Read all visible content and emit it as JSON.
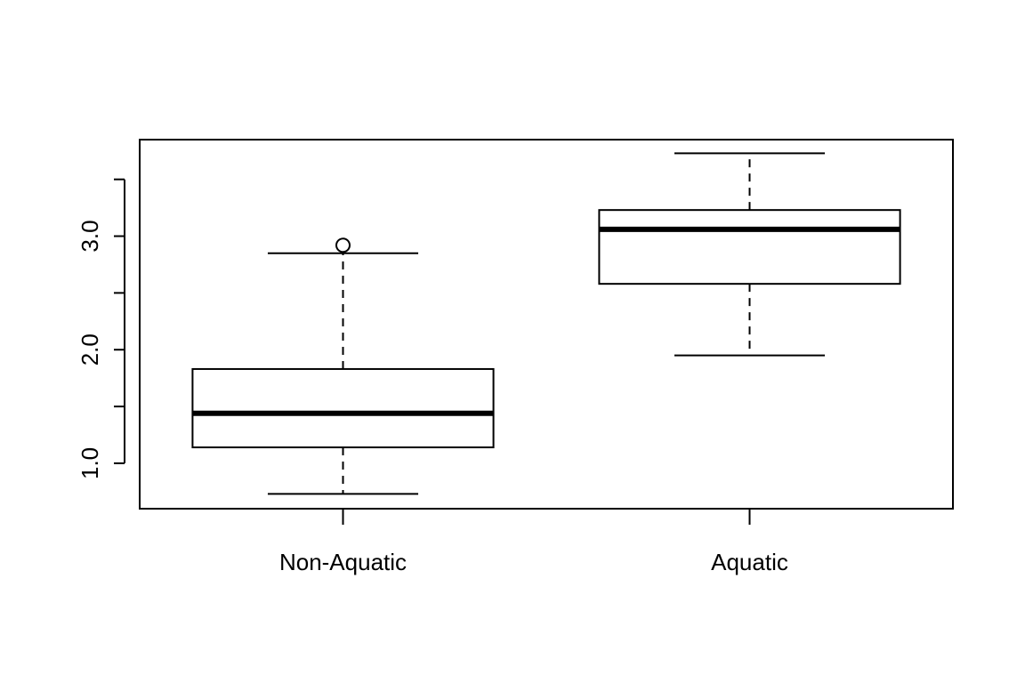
{
  "chart_data": {
    "type": "boxplot",
    "title": "",
    "xlabel": "",
    "ylabel": "",
    "ylim": [
      0.6,
      3.85
    ],
    "y_ticks": [
      1.0,
      1.5,
      2.0,
      2.5,
      3.0,
      3.5
    ],
    "y_tick_labels": [
      "1.0",
      "",
      "2.0",
      "",
      "3.0",
      ""
    ],
    "categories": [
      "Non-Aquatic",
      "Aquatic"
    ],
    "boxes": [
      {
        "category": "Non-Aquatic",
        "whisker_low": 0.73,
        "q1": 1.14,
        "median": 1.44,
        "q3": 1.83,
        "whisker_high": 2.85,
        "outliers": [
          2.92
        ]
      },
      {
        "category": "Aquatic",
        "whisker_low": 1.95,
        "q1": 2.58,
        "median": 3.06,
        "q3": 3.23,
        "whisker_high": 3.73,
        "outliers": []
      }
    ]
  }
}
